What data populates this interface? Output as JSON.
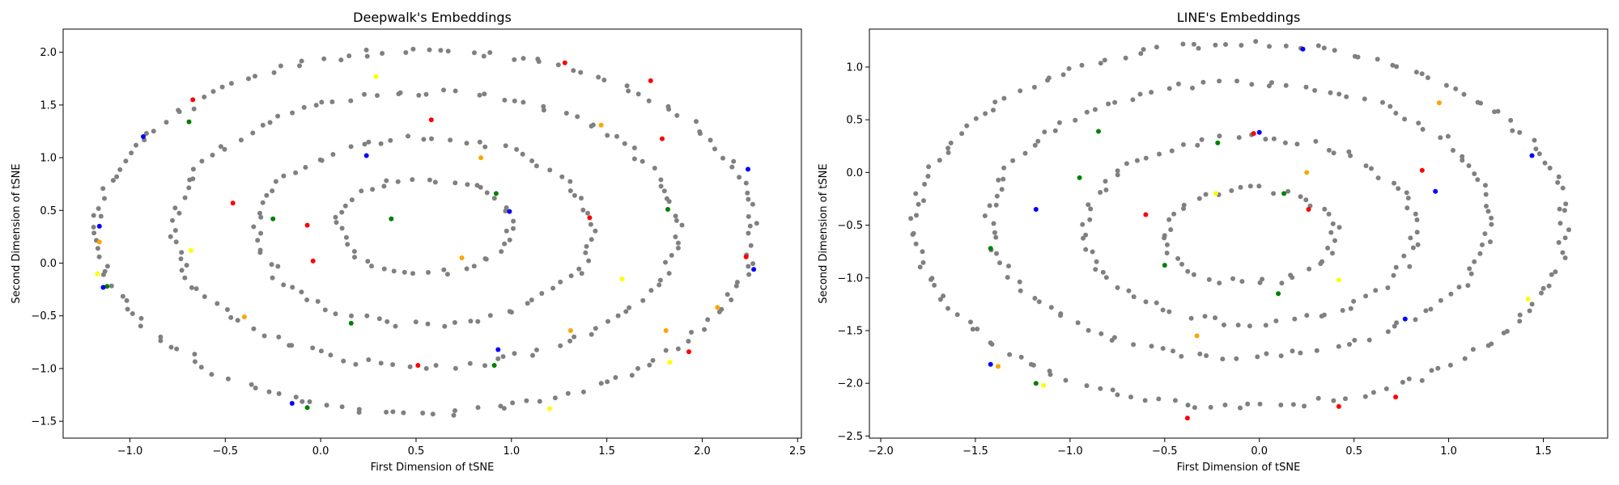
{
  "chart_data": [
    {
      "type": "scatter",
      "title": "Deepwalk's Embeddings",
      "xlabel": "First Dimension of tSNE",
      "ylabel": "Second Dimension of tSNE",
      "xlim": [
        -1.35,
        2.52
      ],
      "ylim": [
        -1.66,
        2.22
      ],
      "xticks": [
        -1.0,
        -0.5,
        0.0,
        0.5,
        1.0,
        1.5,
        2.0,
        2.5
      ],
      "xtick_labels": [
        "−1.0",
        "−0.5",
        "0.0",
        "0.5",
        "1.0",
        "1.5",
        "2.0",
        "2.5"
      ],
      "yticks": [
        -1.5,
        -1.0,
        -0.5,
        0.0,
        0.5,
        1.0,
        1.5,
        2.0
      ],
      "ytick_labels": [
        "−1.5",
        "−1.0",
        "−0.5",
        "0.0",
        "0.5",
        "1.0",
        "1.5",
        "2.0"
      ],
      "grid": false,
      "gray_rings": [
        {
          "cx": 0.55,
          "cy": 0.3,
          "rx": 1.72,
          "ry": 1.72,
          "n": 150
        },
        {
          "cx": 0.55,
          "cy": 0.32,
          "rx": 1.32,
          "ry": 1.3,
          "n": 115
        },
        {
          "cx": 0.55,
          "cy": 0.3,
          "rx": 0.88,
          "ry": 0.88,
          "n": 80
        },
        {
          "cx": 0.55,
          "cy": 0.35,
          "rx": 0.45,
          "ry": 0.45,
          "n": 45
        }
      ],
      "gray_color": "#808080",
      "highlight_colors": {
        "blue": "#0000ff",
        "red": "#ff0000",
        "green": "#008000",
        "orange": "#ffa500",
        "yellow": "#ffff00"
      },
      "highlight_points": [
        {
          "x": -0.93,
          "y": 1.2,
          "c": "blue"
        },
        {
          "x": -0.67,
          "y": 1.55,
          "c": "red"
        },
        {
          "x": -0.69,
          "y": 1.34,
          "c": "green"
        },
        {
          "x": 0.24,
          "y": 1.02,
          "c": "blue"
        },
        {
          "x": 0.29,
          "y": 1.77,
          "c": "yellow"
        },
        {
          "x": 0.58,
          "y": 1.36,
          "c": "red"
        },
        {
          "x": 1.28,
          "y": 1.9,
          "c": "red"
        },
        {
          "x": 1.73,
          "y": 1.73,
          "c": "red"
        },
        {
          "x": 1.47,
          "y": 1.31,
          "c": "orange"
        },
        {
          "x": 1.79,
          "y": 1.18,
          "c": "red"
        },
        {
          "x": 0.84,
          "y": 1.0,
          "c": "orange"
        },
        {
          "x": 2.24,
          "y": 0.89,
          "c": "blue"
        },
        {
          "x": -1.16,
          "y": 0.2,
          "c": "orange"
        },
        {
          "x": -1.16,
          "y": 0.35,
          "c": "blue"
        },
        {
          "x": -0.46,
          "y": 0.57,
          "c": "red"
        },
        {
          "x": -0.25,
          "y": 0.42,
          "c": "green"
        },
        {
          "x": -0.07,
          "y": 0.36,
          "c": "red"
        },
        {
          "x": 0.37,
          "y": 0.42,
          "c": "green"
        },
        {
          "x": 0.92,
          "y": 0.66,
          "c": "green"
        },
        {
          "x": 0.99,
          "y": 0.49,
          "c": "blue"
        },
        {
          "x": 1.82,
          "y": 0.51,
          "c": "green"
        },
        {
          "x": 1.41,
          "y": 0.43,
          "c": "red"
        },
        {
          "x": -0.68,
          "y": 0.12,
          "c": "yellow"
        },
        {
          "x": -0.04,
          "y": 0.02,
          "c": "red"
        },
        {
          "x": 0.74,
          "y": 0.05,
          "c": "orange"
        },
        {
          "x": 2.23,
          "y": 0.06,
          "c": "red"
        },
        {
          "x": 2.27,
          "y": -0.06,
          "c": "blue"
        },
        {
          "x": -1.12,
          "y": -0.22,
          "c": "green"
        },
        {
          "x": -1.14,
          "y": -0.23,
          "c": "blue"
        },
        {
          "x": -1.17,
          "y": -0.1,
          "c": "yellow"
        },
        {
          "x": -0.4,
          "y": -0.51,
          "c": "orange"
        },
        {
          "x": 0.16,
          "y": -0.57,
          "c": "green"
        },
        {
          "x": 1.58,
          "y": -0.15,
          "c": "yellow"
        },
        {
          "x": 2.08,
          "y": -0.42,
          "c": "orange"
        },
        {
          "x": 1.31,
          "y": -0.64,
          "c": "orange"
        },
        {
          "x": 1.81,
          "y": -0.64,
          "c": "orange"
        },
        {
          "x": 0.93,
          "y": -0.82,
          "c": "blue"
        },
        {
          "x": 0.91,
          "y": -0.97,
          "c": "green"
        },
        {
          "x": 0.51,
          "y": -0.97,
          "c": "red"
        },
        {
          "x": 1.83,
          "y": -0.94,
          "c": "yellow"
        },
        {
          "x": 1.93,
          "y": -0.84,
          "c": "red"
        },
        {
          "x": -0.15,
          "y": -1.33,
          "c": "blue"
        },
        {
          "x": -0.07,
          "y": -1.37,
          "c": "green"
        },
        {
          "x": 1.2,
          "y": -1.38,
          "c": "yellow"
        }
      ]
    },
    {
      "type": "scatter",
      "title": "LINE's Embeddings",
      "xlabel": "First Dimension of tSNE",
      "ylabel": "Second Dimension of tSNE",
      "xlim": [
        -2.06,
        1.84
      ],
      "ylim": [
        -2.52,
        1.36
      ],
      "xticks": [
        -2.0,
        -1.5,
        -1.0,
        -0.5,
        0.0,
        0.5,
        1.0,
        1.5
      ],
      "xtick_labels": [
        "−2.0",
        "−1.5",
        "−1.0",
        "−0.5",
        "0.0",
        "0.5",
        "1.0",
        "1.5"
      ],
      "yticks": [
        -2.5,
        -2.0,
        -1.5,
        -1.0,
        -0.5,
        0.0,
        0.5,
        1.0
      ],
      "ytick_labels": [
        "−2.5",
        "−2.0",
        "−1.5",
        "−1.0",
        "−0.5",
        "0.0",
        "0.5",
        "1.0"
      ],
      "grid": false,
      "gray_rings": [
        {
          "cx": -0.1,
          "cy": -0.5,
          "rx": 1.72,
          "ry": 1.72,
          "n": 150
        },
        {
          "cx": -0.1,
          "cy": -0.45,
          "rx": 1.32,
          "ry": 1.3,
          "n": 115
        },
        {
          "cx": -0.05,
          "cy": -0.55,
          "rx": 0.88,
          "ry": 0.88,
          "n": 80
        },
        {
          "cx": -0.05,
          "cy": -0.6,
          "rx": 0.45,
          "ry": 0.45,
          "n": 45
        }
      ],
      "gray_color": "#808080",
      "highlight_colors": {
        "blue": "#0000ff",
        "red": "#ff0000",
        "green": "#008000",
        "orange": "#ffa500",
        "yellow": "#ffff00"
      },
      "highlight_points": [
        {
          "x": 0.23,
          "y": 1.17,
          "c": "blue"
        },
        {
          "x": 0.95,
          "y": 0.66,
          "c": "orange"
        },
        {
          "x": -0.85,
          "y": 0.39,
          "c": "green"
        },
        {
          "x": 0.0,
          "y": 0.38,
          "c": "blue"
        },
        {
          "x": -0.03,
          "y": 0.37,
          "c": "red"
        },
        {
          "x": -0.22,
          "y": 0.28,
          "c": "green"
        },
        {
          "x": 1.44,
          "y": 0.16,
          "c": "blue"
        },
        {
          "x": 0.86,
          "y": 0.02,
          "c": "red"
        },
        {
          "x": 0.25,
          "y": 0.0,
          "c": "orange"
        },
        {
          "x": -0.95,
          "y": -0.05,
          "c": "green"
        },
        {
          "x": 0.93,
          "y": -0.18,
          "c": "blue"
        },
        {
          "x": -0.23,
          "y": -0.2,
          "c": "yellow"
        },
        {
          "x": 0.13,
          "y": -0.2,
          "c": "green"
        },
        {
          "x": -0.6,
          "y": -0.4,
          "c": "red"
        },
        {
          "x": 0.26,
          "y": -0.35,
          "c": "red"
        },
        {
          "x": -1.18,
          "y": -0.35,
          "c": "blue"
        },
        {
          "x": -1.42,
          "y": -0.72,
          "c": "green"
        },
        {
          "x": -0.5,
          "y": -0.88,
          "c": "green"
        },
        {
          "x": 0.42,
          "y": -1.02,
          "c": "yellow"
        },
        {
          "x": 0.1,
          "y": -1.15,
          "c": "green"
        },
        {
          "x": -0.33,
          "y": -1.55,
          "c": "orange"
        },
        {
          "x": 0.77,
          "y": -1.39,
          "c": "blue"
        },
        {
          "x": 1.42,
          "y": -1.2,
          "c": "yellow"
        },
        {
          "x": -1.42,
          "y": -1.82,
          "c": "blue"
        },
        {
          "x": -1.38,
          "y": -1.84,
          "c": "orange"
        },
        {
          "x": -1.18,
          "y": -2.0,
          "c": "green"
        },
        {
          "x": -1.14,
          "y": -2.02,
          "c": "yellow"
        },
        {
          "x": -0.38,
          "y": -2.33,
          "c": "red"
        },
        {
          "x": 0.42,
          "y": -2.22,
          "c": "red"
        },
        {
          "x": 0.72,
          "y": -2.13,
          "c": "red"
        }
      ]
    }
  ]
}
